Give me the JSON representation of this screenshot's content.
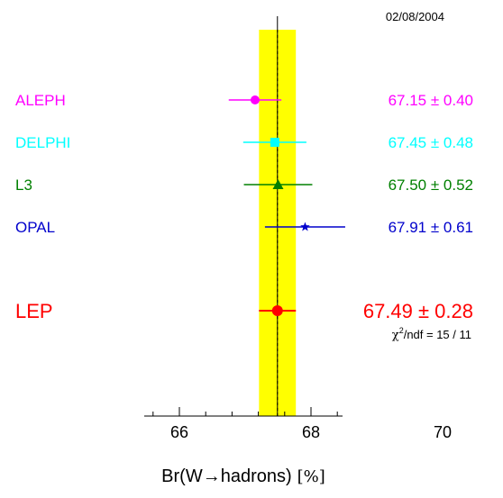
{
  "date": "02/08/2004",
  "chart_data": {
    "type": "scatter",
    "title": "",
    "xlabel": "Br(W→hadrons) [%]",
    "xlabel_main": "Br(W→hadrons)",
    "xlabel_unit": "[%]",
    "xlim": [
      64.7,
      71.8
    ],
    "xticks": [
      66,
      68,
      70
    ],
    "xtick_labels": [
      "66",
      "68",
      "70"
    ],
    "band": {
      "center": 67.49,
      "error": 0.28,
      "color": "#ffff00"
    },
    "reference_line": 67.49,
    "chi2": {
      "label": "χ",
      "sup": "2",
      "rest": "/ndf = 15 / 11"
    },
    "series": [
      {
        "name": "ALEPH",
        "value": 67.15,
        "error": 0.4,
        "text": "67.15 ±  0.40",
        "color": "#ff00ff",
        "marker": "circle"
      },
      {
        "name": "DELPHI",
        "value": 67.45,
        "error": 0.48,
        "text": "67.45 ±  0.48",
        "color": "#00ffff",
        "marker": "square"
      },
      {
        "name": "L3",
        "value": 67.5,
        "error": 0.52,
        "text": "67.50 ±  0.52",
        "color": "#008000",
        "marker": "triangle"
      },
      {
        "name": "OPAL",
        "value": 67.91,
        "error": 0.61,
        "text": "67.91 ±  0.61",
        "color": "#0000cc",
        "marker": "star"
      },
      {
        "name": "LEP",
        "value": 67.49,
        "error": 0.28,
        "text": "67.49 ±  0.28",
        "color": "#ff0000",
        "marker": "dot",
        "emphasis": true
      }
    ]
  }
}
